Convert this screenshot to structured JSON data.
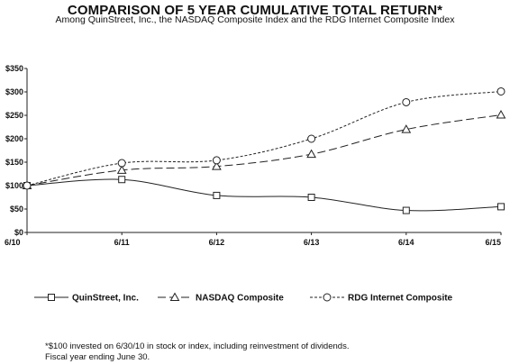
{
  "title": "COMPARISON OF 5 YEAR CUMULATIVE TOTAL RETURN*",
  "subtitle": "Among QuinStreet, Inc., the NASDAQ Composite Index and the RDG Internet Composite Index",
  "chart_data": {
    "type": "line",
    "categories": [
      "6/10",
      "6/11",
      "6/12",
      "6/13",
      "6/14",
      "6/15"
    ],
    "ylim": [
      0,
      350
    ],
    "yticks": [
      "$0",
      "$50",
      "$100",
      "$150",
      "$200",
      "$250",
      "$300",
      "$350"
    ],
    "grid": false,
    "legend_position": "bottom",
    "series": [
      {
        "name": "QuinStreet, Inc.",
        "marker": "square",
        "dash": "solid",
        "values": [
          100,
          113,
          79,
          75,
          47,
          55
        ]
      },
      {
        "name": "NASDAQ Composite",
        "marker": "triangle",
        "dash": "long-dash",
        "values": [
          100,
          133,
          141,
          167,
          220,
          251
        ]
      },
      {
        "name": "RDG Internet Composite",
        "marker": "circle",
        "dash": "short-dash",
        "values": [
          100,
          148,
          154,
          200,
          278,
          301
        ]
      }
    ]
  },
  "footnote": {
    "line1": "*$100 invested on 6/30/10 in stock or index, including reinvestment of dividends.",
    "line2": "Fiscal year ending June 30."
  }
}
